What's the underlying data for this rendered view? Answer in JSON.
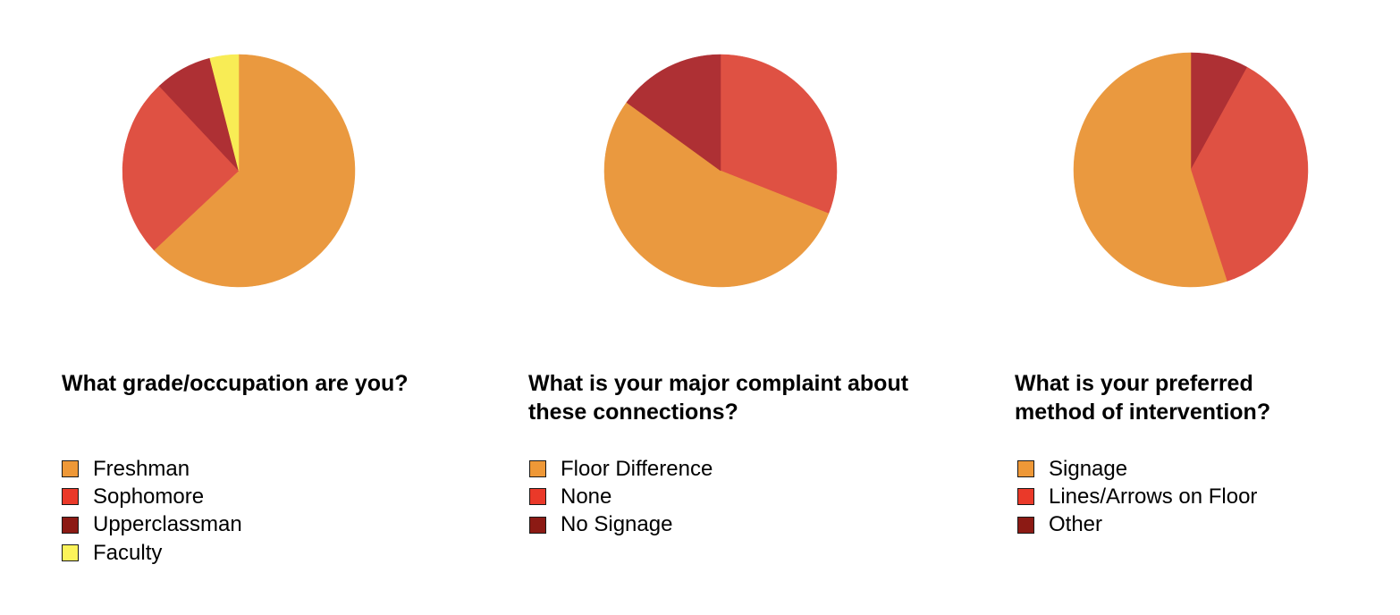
{
  "colors": {
    "orange": "#ea993f",
    "red": "#df5143",
    "darkred": "#ae3034",
    "yellow": "#f8ec55",
    "legend_orange": "#ee9837",
    "legend_red": "#ea3929",
    "legend_darkred": "#8c1a14",
    "legend_yellow": "#fbf35a"
  },
  "chart_data": [
    {
      "type": "pie",
      "title": "What grade/occupation are you?",
      "series": [
        {
          "name": "Freshman",
          "value": 63,
          "color": "#ea993f",
          "legend_color": "#ee9837"
        },
        {
          "name": "Sophomore",
          "value": 25,
          "color": "#df5143",
          "legend_color": "#ea3929"
        },
        {
          "name": "Upperclassman",
          "value": 8,
          "color": "#ae3034",
          "legend_color": "#8c1a14"
        },
        {
          "name": "Faculty",
          "value": 4,
          "color": "#f8ec55",
          "legend_color": "#fbf35a"
        }
      ],
      "pie_order": [
        "Freshman",
        "Sophomore",
        "Upperclassman",
        "Faculty"
      ],
      "start_angle_deg": 0,
      "direction": "clockwise",
      "legend_position": "bottom-left"
    },
    {
      "type": "pie",
      "title": "What is your major complaint about these connections?",
      "series": [
        {
          "name": "Floor Difference",
          "value": 54,
          "color": "#ea993f",
          "legend_color": "#ee9837"
        },
        {
          "name": "None",
          "value": 31,
          "color": "#df5143",
          "legend_color": "#ea3929"
        },
        {
          "name": "No Signage",
          "value": 15,
          "color": "#ae3034",
          "legend_color": "#8c1a14"
        }
      ],
      "pie_order": [
        "None",
        "Floor Difference",
        "No Signage"
      ],
      "start_angle_deg": 0,
      "direction": "clockwise",
      "legend_position": "bottom-left"
    },
    {
      "type": "pie",
      "title": "What is your preferred method of intervention?",
      "series": [
        {
          "name": "Signage",
          "value": 55,
          "color": "#ea993f",
          "legend_color": "#ee9837"
        },
        {
          "name": "Lines/Arrows on Floor",
          "value": 37,
          "color": "#df5143",
          "legend_color": "#ea3929"
        },
        {
          "name": "Other",
          "value": 8,
          "color": "#ae3034",
          "legend_color": "#8c1a14"
        }
      ],
      "pie_order": [
        "Other",
        "Lines/Arrows on Floor",
        "Signage"
      ],
      "start_angle_deg": 0,
      "direction": "clockwise",
      "legend_position": "bottom-left"
    }
  ]
}
